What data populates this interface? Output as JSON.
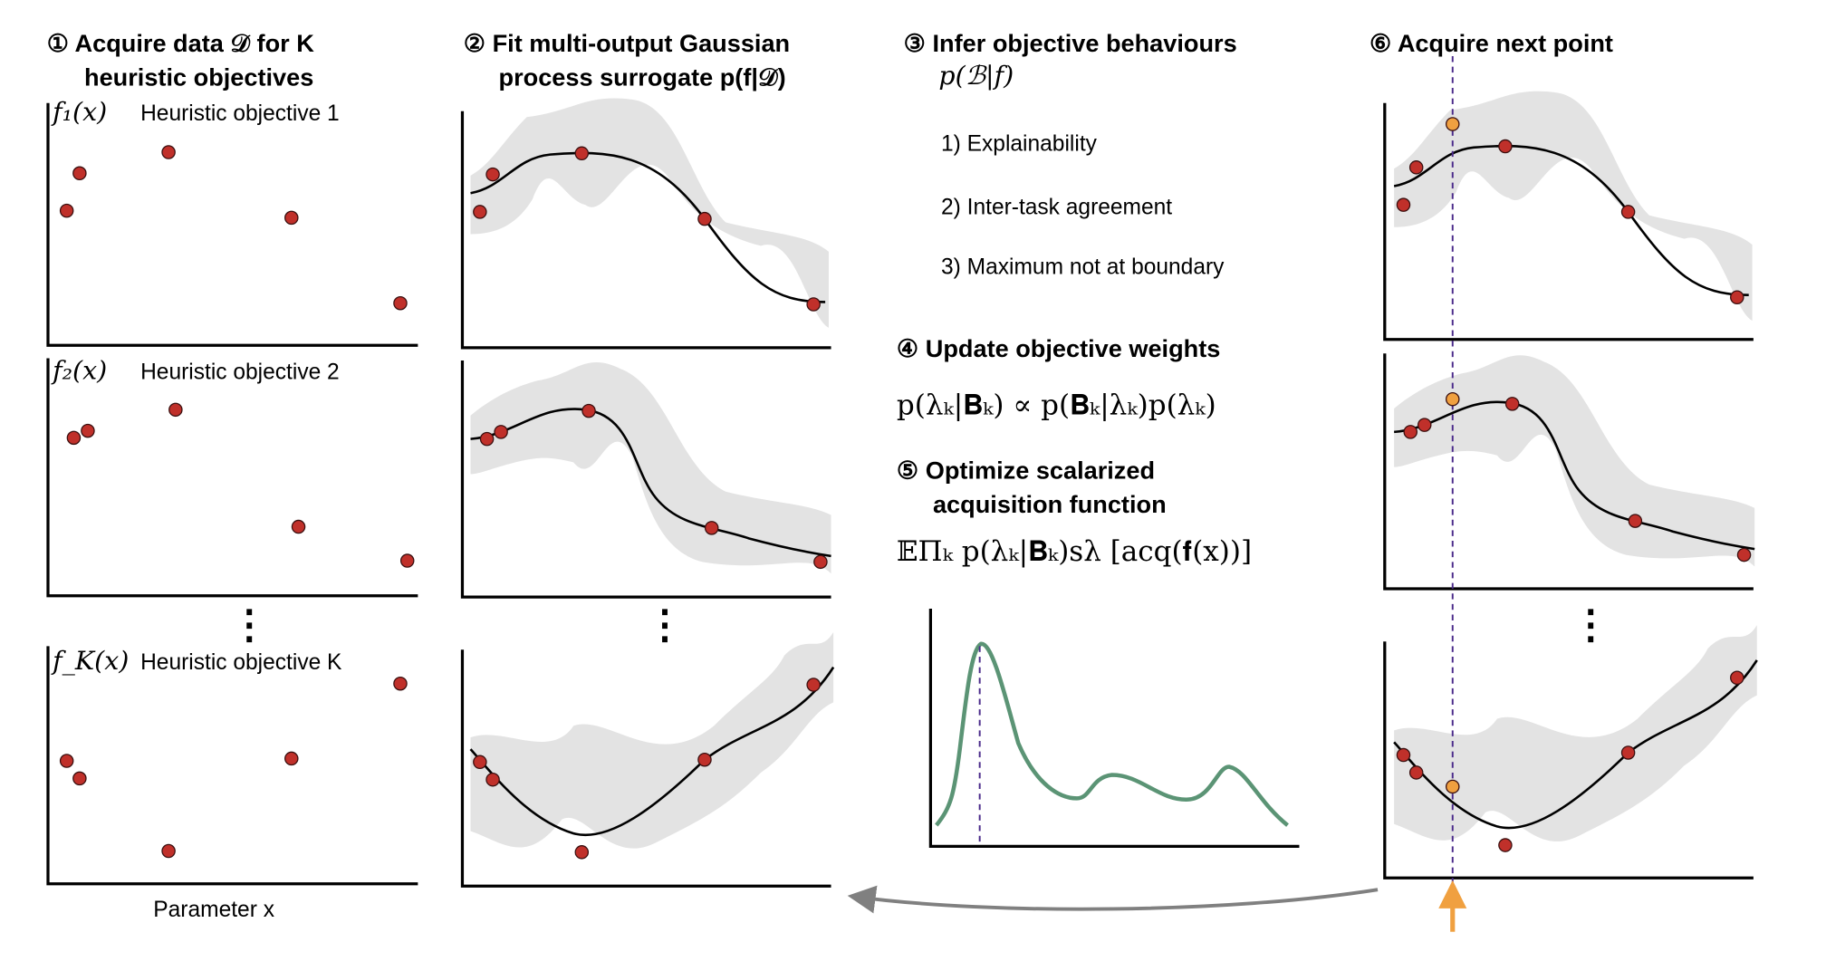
{
  "step1": {
    "title_line1": "① Acquire data 𝒟 for K",
    "title_line2": "heuristic objectives",
    "labels": [
      {
        "fn": "f₁(x)",
        "name": "Heuristic objective 1"
      },
      {
        "fn": "f₂(x)",
        "name": "Heuristic objective 2"
      },
      {
        "fn": "f_K(x)",
        "name": "Heuristic objective K"
      }
    ],
    "xlabel": "Parameter x",
    "ellipsis": "⋮"
  },
  "step2": {
    "title_line1": "② Fit multi-output Gaussian",
    "title_line2": "process surrogate p(f|𝒟)",
    "ellipsis": "⋮"
  },
  "step3": {
    "title": "③ Infer objective behaviours",
    "formula": "p(ℬ|f)",
    "behaviours": [
      "1) Explainability",
      "2) Inter-task agreement",
      "3) Maximum not at boundary"
    ]
  },
  "step4": {
    "title": "④ Update objective weights",
    "formula": "p(λₖ|𝐁ₖ) ∝ p(𝐁ₖ|λₖ)p(λₖ)"
  },
  "step5": {
    "title_line1": "⑤ Optimize scalarized",
    "title_line2": "acquisition function",
    "formula": "𝔼Πₖ p(λₖ|𝐁ₖ)sλ [acq(𝐟(x))]"
  },
  "step6": {
    "title": "⑥ Acquire next point",
    "ellipsis": "⋮"
  },
  "colors": {
    "observed_point": "#c0302a",
    "next_point": "#f0a040",
    "acquisition_curve": "#5b9475",
    "selection_line": "#4a2a8a",
    "uncertainty_band": "#e3e3e3",
    "loop_arrow": "#808080",
    "next_point_arrow": "#f0a040"
  }
}
